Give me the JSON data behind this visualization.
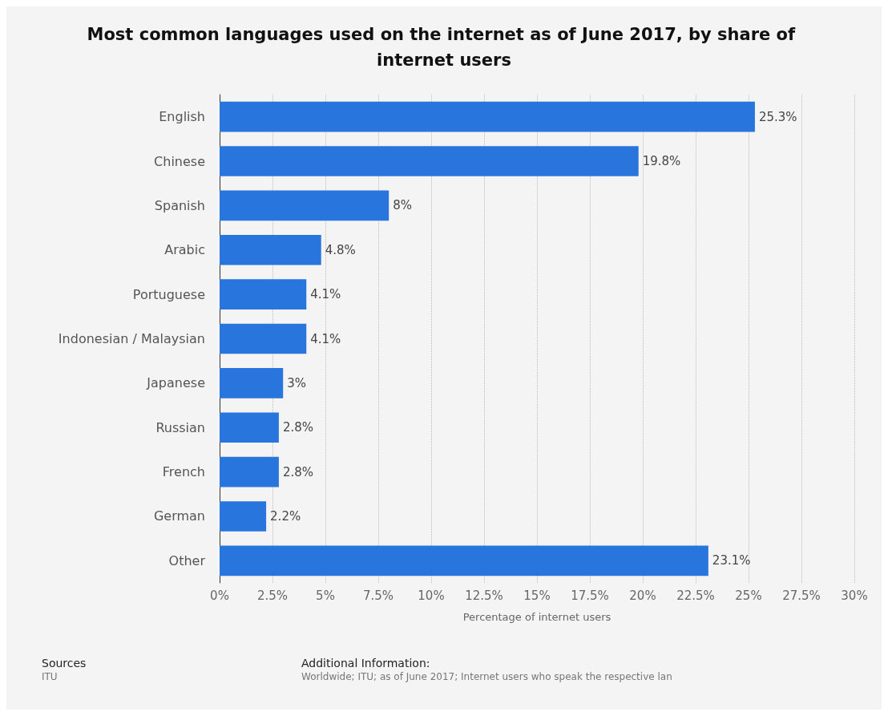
{
  "chart_data": {
    "type": "bar",
    "orientation": "horizontal",
    "title": "Most common languages used on the internet as of June 2017, by share of internet users",
    "xlabel": "Percentage of internet users",
    "categories": [
      "English",
      "Chinese",
      "Spanish",
      "Arabic",
      "Portuguese",
      "Indonesian / Malaysian",
      "Japanese",
      "Russian",
      "French",
      "German",
      "Other"
    ],
    "values": [
      25.3,
      19.8,
      8,
      4.8,
      4.1,
      4.1,
      3,
      2.8,
      2.8,
      2.2,
      23.1
    ],
    "value_labels": [
      "25.3%",
      "19.8%",
      "8%",
      "4.8%",
      "4.1%",
      "4.1%",
      "3%",
      "2.8%",
      "2.8%",
      "2.2%",
      "23.1%"
    ],
    "color": "#2876dd",
    "xlim": [
      0,
      30
    ],
    "xticks": [
      {
        "value": 0,
        "label": "0%"
      },
      {
        "value": 2.5,
        "label": "2.5%"
      },
      {
        "value": 5,
        "label": "5%"
      },
      {
        "value": 7.5,
        "label": "7.5%"
      },
      {
        "value": 10,
        "label": "10%"
      },
      {
        "value": 12.5,
        "label": "12.5%"
      },
      {
        "value": 15,
        "label": "15%"
      },
      {
        "value": 17.5,
        "label": "17.5%"
      },
      {
        "value": 20,
        "label": "20%"
      },
      {
        "value": 22.5,
        "label": "22.5%"
      },
      {
        "value": 25,
        "label": "25%"
      },
      {
        "value": 27.5,
        "label": "27.5%"
      },
      {
        "value": 30,
        "label": "30%"
      }
    ],
    "grid": "x",
    "annotations": [
      "Sources",
      "ITU",
      "Additional Information:",
      "Worldwide; ITU; as of June 2017; Internet users who speak the respective lan"
    ]
  }
}
